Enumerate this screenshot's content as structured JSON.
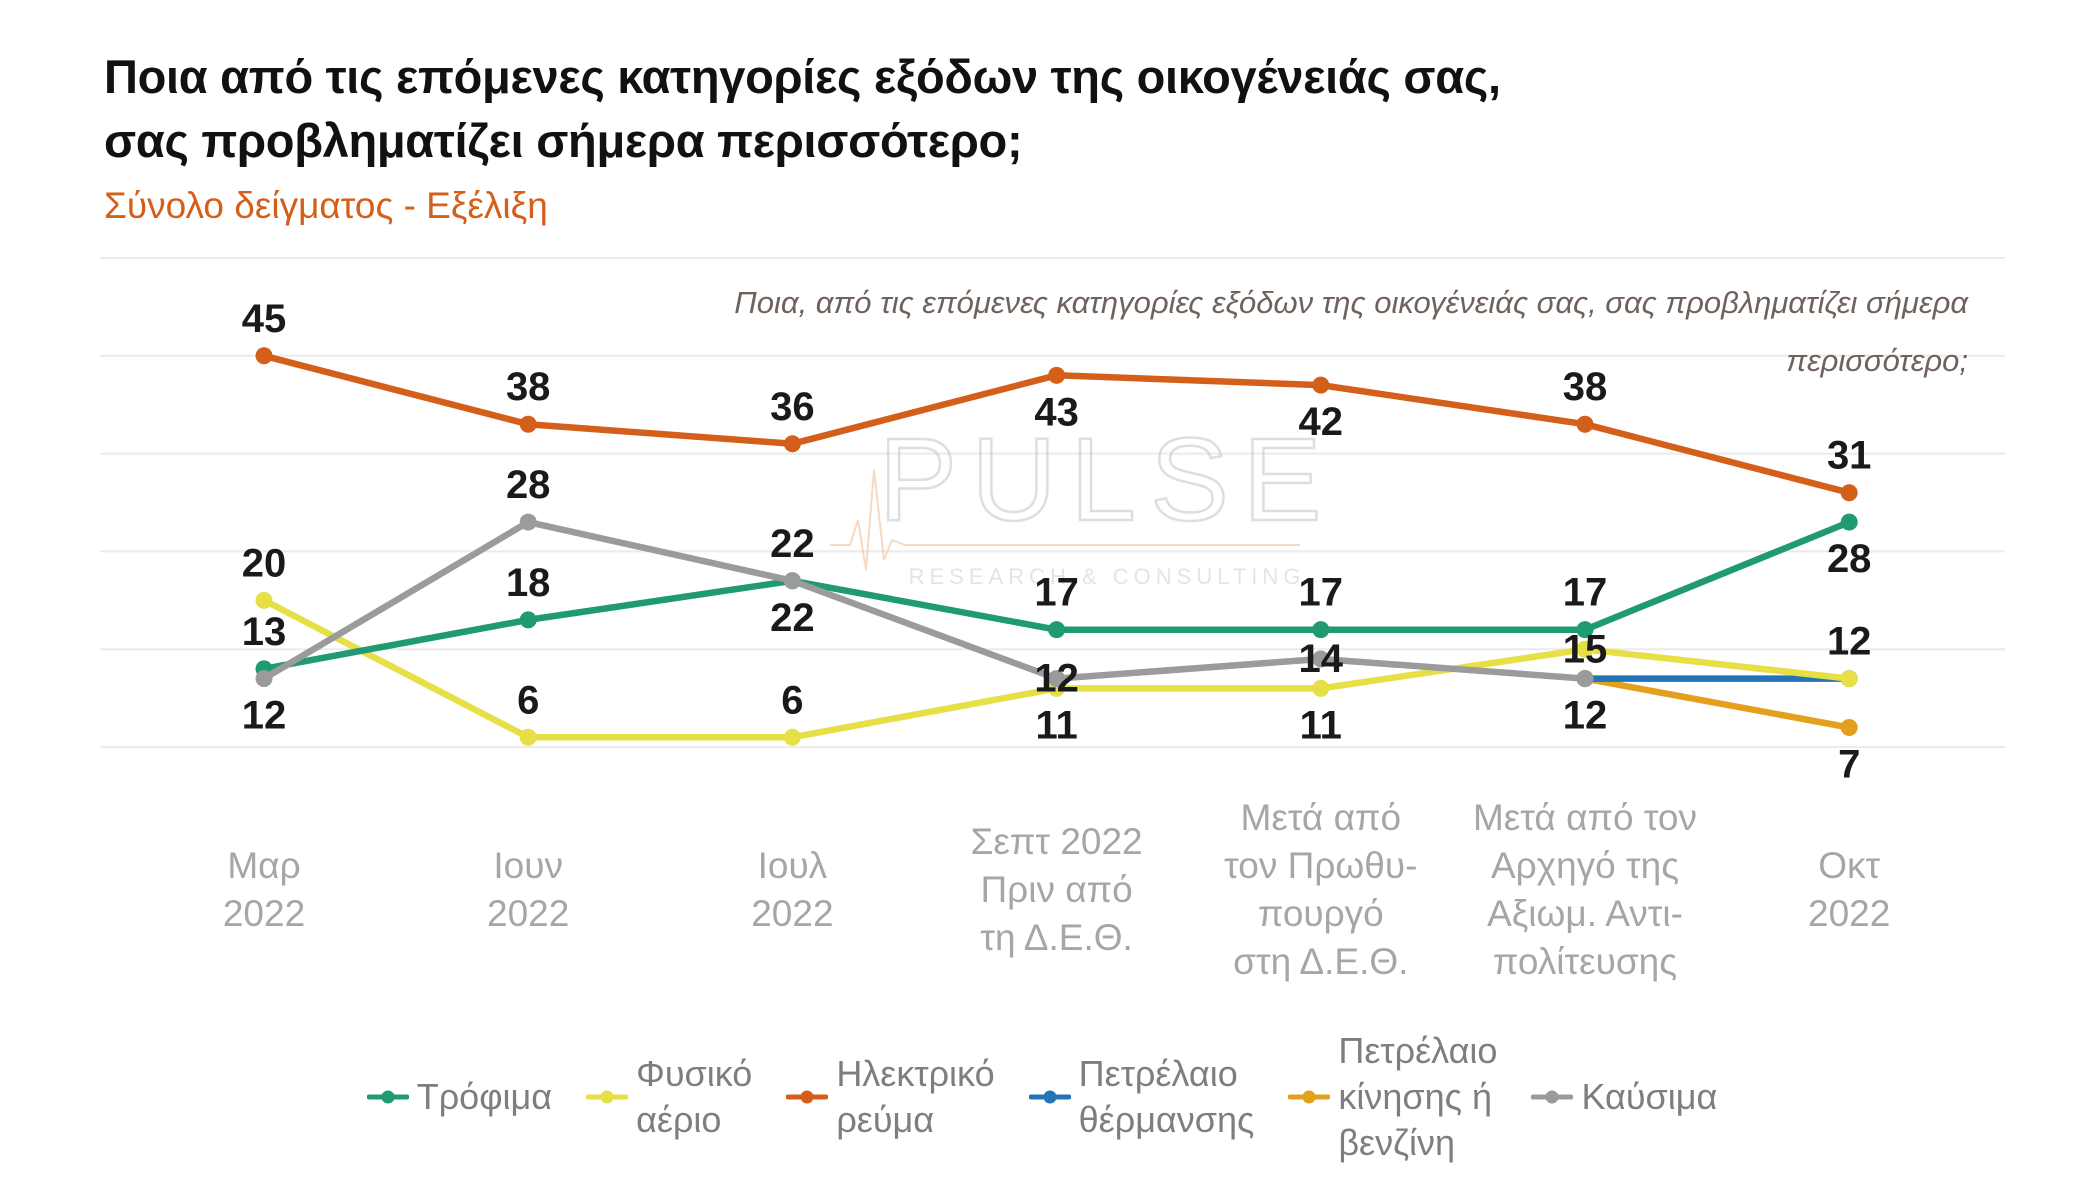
{
  "watermark": {
    "brand": "PULSE",
    "tagline": "RESEARCH & CONSULTING"
  },
  "chart_data": {
    "type": "line",
    "title": "Ποια από τις επόμενες κατηγορίες εξόδων της οικογένειάς σας,\nσας προβληματίζει σήμερα περισσότερο;",
    "subtitle": "Σύνολο δείγματος - Εξέλιξη",
    "note": "Ποια, από τις επόμενες κατηγορίες εξόδων της οικογένειάς σας, σας προβληματίζει σήμερα\nπερισσότερο;",
    "xlabel": "",
    "ylabel": "",
    "ylim": [
      0,
      60
    ],
    "grid": true,
    "legend_position": "bottom",
    "categories": [
      "Μαρ\n2022",
      "Ιουν\n2022",
      "Ιουλ\n2022",
      "Σεπτ 2022\nΠριν από\nτη Δ.Ε.Θ.",
      "Μετά από\nτον Πρωθυ-\nπουργό\nστη Δ.Ε.Θ.",
      "Μετά από τον\nΑρχηγό της\nΑξιωμ. Αντι-\nπολίτευσης",
      "Οκτ\n2022"
    ],
    "series": [
      {
        "name": "Τρόφιμα",
        "color": "#1f9a72",
        "values": [
          13,
          18,
          22,
          17,
          17,
          17,
          28
        ]
      },
      {
        "name": "Φυσικό\nαέριο",
        "color": "#e6df45",
        "values": [
          20,
          6,
          6,
          11,
          11,
          15,
          12
        ]
      },
      {
        "name": "Ηλεκτρικό\nρεύμα",
        "color": "#d35f1a",
        "values": [
          45,
          38,
          36,
          43,
          42,
          38,
          31
        ]
      },
      {
        "name": "Πετρέλαιο\nθέρμανσης",
        "color": "#2273b8",
        "values": [
          null,
          null,
          null,
          null,
          null,
          12,
          12
        ]
      },
      {
        "name": "Πετρέλαιο\nκίνησης ή\nβενζίνη",
        "color": "#e3a01e",
        "values": [
          null,
          null,
          null,
          null,
          null,
          12,
          7
        ]
      },
      {
        "name": "Καύσιμα",
        "color": "#9b9b9b",
        "values": [
          12,
          28,
          22,
          12,
          14,
          12,
          null
        ]
      }
    ],
    "data_labels": [
      {
        "series": 2,
        "category": 0,
        "text": "45",
        "place": "above"
      },
      {
        "series": 2,
        "category": 1,
        "text": "38",
        "place": "above"
      },
      {
        "series": 2,
        "category": 2,
        "text": "36",
        "place": "above"
      },
      {
        "series": 2,
        "category": 3,
        "text": "43",
        "place": "below"
      },
      {
        "series": 2,
        "category": 4,
        "text": "42",
        "place": "below"
      },
      {
        "series": 2,
        "category": 5,
        "text": "38",
        "place": "above"
      },
      {
        "series": 2,
        "category": 6,
        "text": "31",
        "place": "above"
      },
      {
        "series": 0,
        "category": 0,
        "text": "13",
        "place": "above"
      },
      {
        "series": 0,
        "category": 1,
        "text": "18",
        "place": "above"
      },
      {
        "series": 0,
        "category": 2,
        "text": "22",
        "place": "below"
      },
      {
        "series": 0,
        "category": 3,
        "text": "17",
        "place": "above"
      },
      {
        "series": 0,
        "category": 4,
        "text": "17",
        "place": "above"
      },
      {
        "series": 0,
        "category": 5,
        "text": "17",
        "place": "above"
      },
      {
        "series": 0,
        "category": 6,
        "text": "28",
        "place": "below"
      },
      {
        "series": 1,
        "category": 0,
        "text": "20",
        "place": "above"
      },
      {
        "series": 1,
        "category": 1,
        "text": "6",
        "place": "above"
      },
      {
        "series": 1,
        "category": 2,
        "text": "6",
        "place": "above"
      },
      {
        "series": 1,
        "category": 3,
        "text": "11",
        "place": "below"
      },
      {
        "series": 1,
        "category": 4,
        "text": "11",
        "place": "below"
      },
      {
        "series": 1,
        "category": 5,
        "text": "15",
        "place": "center"
      },
      {
        "series": 3,
        "category": 6,
        "text": "12",
        "place": "above"
      },
      {
        "series": 4,
        "category": 6,
        "text": "7",
        "place": "below"
      },
      {
        "series": 5,
        "category": 0,
        "text": "12",
        "place": "below"
      },
      {
        "series": 5,
        "category": 1,
        "text": "28",
        "place": "above"
      },
      {
        "series": 5,
        "category": 2,
        "text": "22",
        "place": "above"
      },
      {
        "series": 5,
        "category": 3,
        "text": "12",
        "place": "center"
      },
      {
        "series": 5,
        "category": 4,
        "text": "14",
        "place": "center"
      },
      {
        "series": 5,
        "category": 5,
        "text": "12",
        "place": "below"
      }
    ]
  }
}
